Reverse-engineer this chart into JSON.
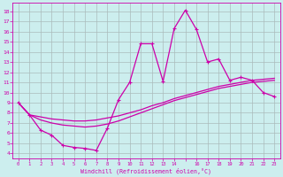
{
  "bg_color": "#cceeee",
  "line_color": "#cc00aa",
  "grid_color": "#aabbbb",
  "xlabel": "Windchill (Refroidissement éolien,°C)",
  "x_ticks_pos": [
    0,
    1,
    2,
    3,
    4,
    5,
    6,
    7,
    8,
    9,
    10,
    11,
    12,
    13,
    14,
    15,
    16,
    17,
    18,
    19,
    20,
    21,
    22,
    23
  ],
  "x_tick_labels": [
    "0",
    "1",
    "2",
    "3",
    "4",
    "5",
    "6",
    "7",
    "8",
    "9",
    "10",
    "11",
    "12",
    "13",
    "14",
    "",
    "16",
    "17",
    "18",
    "19",
    "20",
    "21",
    "22",
    "23"
  ],
  "y_ticks": [
    4,
    5,
    6,
    7,
    8,
    9,
    10,
    11,
    12,
    13,
    14,
    15,
    16,
    17,
    18
  ],
  "ylim": [
    3.5,
    18.8
  ],
  "xlim": [
    -0.5,
    23.5
  ],
  "curve1_x": [
    0,
    1,
    2,
    3,
    4,
    5,
    6,
    7,
    8,
    9,
    10,
    11,
    12,
    13,
    14,
    15,
    16,
    17,
    18,
    19,
    20,
    21,
    22,
    23
  ],
  "curve1_y": [
    9.0,
    7.8,
    6.3,
    5.8,
    4.8,
    4.6,
    4.5,
    4.3,
    6.5,
    9.3,
    11.0,
    14.8,
    14.8,
    11.1,
    16.3,
    18.1,
    16.2,
    13.0,
    13.3,
    11.2,
    11.5,
    11.2,
    10.0,
    9.6
  ],
  "curve2_x": [
    0,
    1,
    2,
    3,
    4,
    5,
    6,
    7,
    8,
    9,
    10,
    11,
    12,
    13,
    14,
    15,
    16,
    17,
    18,
    19,
    20,
    21,
    22,
    23
  ],
  "curve2_y": [
    9.0,
    7.8,
    7.6,
    7.4,
    7.3,
    7.2,
    7.2,
    7.3,
    7.5,
    7.7,
    8.0,
    8.3,
    8.7,
    9.0,
    9.4,
    9.7,
    10.0,
    10.3,
    10.6,
    10.8,
    11.0,
    11.2,
    11.3,
    11.4
  ],
  "curve3_x": [
    0,
    1,
    2,
    3,
    4,
    5,
    6,
    7,
    8,
    9,
    10,
    11,
    12,
    13,
    14,
    15,
    16,
    17,
    18,
    19,
    20,
    21,
    22,
    23
  ],
  "curve3_y": [
    9.0,
    7.8,
    7.3,
    7.0,
    6.8,
    6.7,
    6.6,
    6.7,
    6.9,
    7.2,
    7.6,
    8.0,
    8.4,
    8.8,
    9.2,
    9.5,
    9.8,
    10.1,
    10.4,
    10.6,
    10.8,
    11.0,
    11.1,
    11.2
  ]
}
